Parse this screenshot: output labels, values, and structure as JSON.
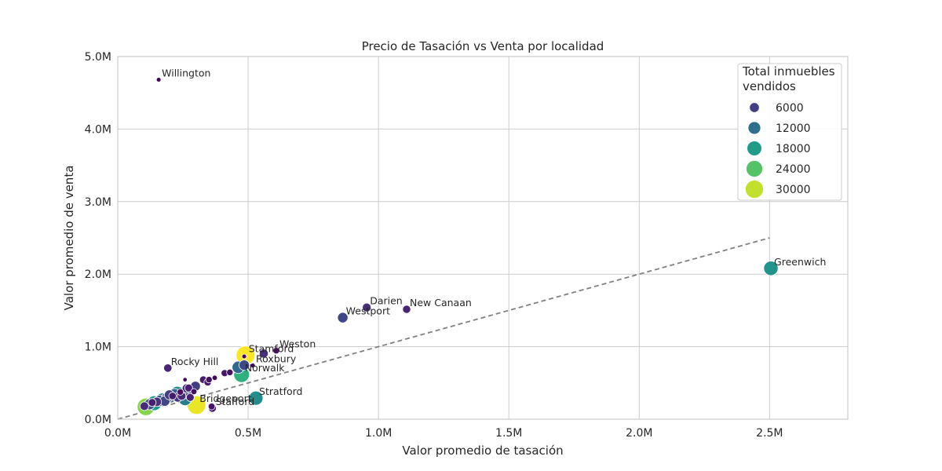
{
  "chart_data": {
    "type": "scatter",
    "title": "Precio de Tasación vs Venta por localidad",
    "xlabel": "Valor promedio de tasación",
    "ylabel": "Valor promedio de venta",
    "xlim": [
      0,
      2800000
    ],
    "ylim": [
      0,
      5000000
    ],
    "x_ticks": [
      0,
      500000,
      1000000,
      1500000,
      2000000,
      2500000
    ],
    "x_tick_labels": [
      "0.0M",
      "0.5M",
      "1.0M",
      "1.5M",
      "2.0M",
      "2.5M"
    ],
    "y_ticks": [
      0,
      1000000,
      2000000,
      3000000,
      4000000,
      5000000
    ],
    "y_tick_labels": [
      "0.0M",
      "1.0M",
      "2.0M",
      "3.0M",
      "4.0M",
      "5.0M"
    ],
    "grid": true,
    "reference_line": {
      "style": "dashed",
      "color": "#808080",
      "from": [
        0,
        0
      ],
      "to": [
        2500000,
        2500000
      ]
    },
    "legend": {
      "title": "Total inmuebles vendidos",
      "placement": "top-right",
      "entries": [
        {
          "label": "6000",
          "value": 6000
        },
        {
          "label": "12000",
          "value": 12000
        },
        {
          "label": "18000",
          "value": 18000
        },
        {
          "label": "24000",
          "value": 24000
        },
        {
          "label": "30000",
          "value": 30000
        }
      ]
    },
    "size_scale": {
      "min_sales": 0,
      "max_sales": 33000
    },
    "points": [
      {
        "name": "Willington",
        "x": 157000,
        "y": 4680000,
        "sales": 300,
        "label": "Willington"
      },
      {
        "name": "Greenwich",
        "x": 2505000,
        "y": 2080000,
        "sales": 17000,
        "label": "Greenwich"
      },
      {
        "name": "Darien",
        "x": 955000,
        "y": 1540000,
        "sales": 4200,
        "label": "Darien"
      },
      {
        "name": "New Canaan",
        "x": 1108000,
        "y": 1515000,
        "sales": 3300,
        "label": "New Canaan"
      },
      {
        "name": "Westport",
        "x": 863000,
        "y": 1400000,
        "sales": 7000,
        "label": "Westport"
      },
      {
        "name": "Stamford",
        "x": 490000,
        "y": 880000,
        "sales": 33000,
        "label": "Stamford"
      },
      {
        "name": "Weston",
        "x": 608000,
        "y": 945000,
        "sales": 1500,
        "label": "Weston"
      },
      {
        "name": "Roxbury",
        "x": 518000,
        "y": 740000,
        "sales": 400,
        "label": "Roxbury"
      },
      {
        "name": "Rocky Hill",
        "x": 192000,
        "y": 705000,
        "sales": 3500,
        "label": "Rocky Hill"
      },
      {
        "name": "Norwalk",
        "x": 475000,
        "y": 615000,
        "sales": 21000,
        "label": "Norwalk"
      },
      {
        "name": "Stratford",
        "x": 530000,
        "y": 290000,
        "sales": 16000,
        "label": "Stratford"
      },
      {
        "name": "Bridgeport",
        "x": 302000,
        "y": 195000,
        "sales": 32000,
        "label": "Bridgeport"
      },
      {
        "name": "Stafford",
        "x": 363000,
        "y": 150000,
        "sales": 3000,
        "label": "Stafford"
      },
      {
        "name": "",
        "x": 560000,
        "y": 905000,
        "sales": 4500
      },
      {
        "name": "",
        "x": 485000,
        "y": 865000,
        "sales": 300
      },
      {
        "name": "",
        "x": 462000,
        "y": 715000,
        "sales": 11000
      },
      {
        "name": "",
        "x": 485000,
        "y": 745000,
        "sales": 7000
      },
      {
        "name": "",
        "x": 328000,
        "y": 545000,
        "sales": 2500
      },
      {
        "name": "",
        "x": 345000,
        "y": 510000,
        "sales": 2500
      },
      {
        "name": "",
        "x": 350000,
        "y": 545000,
        "sales": 1500
      },
      {
        "name": "",
        "x": 372000,
        "y": 570000,
        "sales": 600
      },
      {
        "name": "",
        "x": 410000,
        "y": 635000,
        "sales": 2000
      },
      {
        "name": "",
        "x": 430000,
        "y": 645000,
        "sales": 1500
      },
      {
        "name": "",
        "x": 258000,
        "y": 545000,
        "sales": 200
      },
      {
        "name": "",
        "x": 298000,
        "y": 455000,
        "sales": 6000
      },
      {
        "name": "",
        "x": 265000,
        "y": 425000,
        "sales": 5000
      },
      {
        "name": "",
        "x": 272000,
        "y": 430000,
        "sales": 3000
      },
      {
        "name": "",
        "x": 240000,
        "y": 375000,
        "sales": 1500
      },
      {
        "name": "",
        "x": 228000,
        "y": 355000,
        "sales": 16000
      },
      {
        "name": "",
        "x": 218000,
        "y": 340000,
        "sales": 10000
      },
      {
        "name": "",
        "x": 258000,
        "y": 280000,
        "sales": 14000
      },
      {
        "name": "",
        "x": 278000,
        "y": 300000,
        "sales": 3000
      },
      {
        "name": "",
        "x": 270000,
        "y": 360000,
        "sales": 9000
      },
      {
        "name": "",
        "x": 292000,
        "y": 380000,
        "sales": 1200
      },
      {
        "name": "",
        "x": 245000,
        "y": 320000,
        "sales": 4000
      },
      {
        "name": "",
        "x": 200000,
        "y": 310000,
        "sales": 12000
      },
      {
        "name": "",
        "x": 188000,
        "y": 290000,
        "sales": 8000
      },
      {
        "name": "",
        "x": 198000,
        "y": 335000,
        "sales": 6000
      },
      {
        "name": "",
        "x": 210000,
        "y": 320000,
        "sales": 2500
      },
      {
        "name": "",
        "x": 172000,
        "y": 265000,
        "sales": 15000
      },
      {
        "name": "",
        "x": 162000,
        "y": 255000,
        "sales": 9000
      },
      {
        "name": "",
        "x": 150000,
        "y": 240000,
        "sales": 5000
      },
      {
        "name": "",
        "x": 140000,
        "y": 220000,
        "sales": 18000
      },
      {
        "name": "",
        "x": 132000,
        "y": 230000,
        "sales": 3000
      },
      {
        "name": "",
        "x": 122000,
        "y": 205000,
        "sales": 8000
      },
      {
        "name": "",
        "x": 108000,
        "y": 170000,
        "sales": 27000
      },
      {
        "name": "",
        "x": 102000,
        "y": 180000,
        "sales": 4000
      },
      {
        "name": "",
        "x": 180000,
        "y": 250000,
        "sales": 7000
      },
      {
        "name": "",
        "x": 230000,
        "y": 300000,
        "sales": 5000
      },
      {
        "name": "",
        "x": 360000,
        "y": 175000,
        "sales": 1800
      }
    ]
  }
}
